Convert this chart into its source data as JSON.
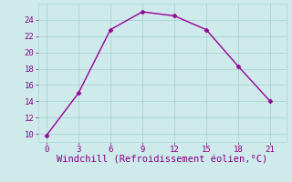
{
  "x": [
    0,
    3,
    6,
    9,
    12,
    15,
    18,
    21
  ],
  "y": [
    9.8,
    15.0,
    22.8,
    25.0,
    24.5,
    22.8,
    18.3,
    14.0
  ],
  "line_color": "#990099",
  "marker": "D",
  "marker_size": 2.5,
  "bg_color": "#ceeaea",
  "grid_color": "#aad4d4",
  "xlabel": "Windchill (Refroidissement éolien,°C)",
  "xlabel_color": "#880088",
  "xlabel_fontsize": 7.5,
  "xticks": [
    0,
    3,
    6,
    9,
    12,
    15,
    18,
    21
  ],
  "yticks": [
    10,
    12,
    14,
    16,
    18,
    20,
    22,
    24
  ],
  "ylim": [
    9.0,
    26.0
  ],
  "xlim": [
    -0.8,
    22.5
  ],
  "tick_color": "#880088",
  "tick_fontsize": 6.5,
  "line_width": 1.0,
  "figsize": [
    3.2,
    2.0
  ],
  "dpi": 100
}
